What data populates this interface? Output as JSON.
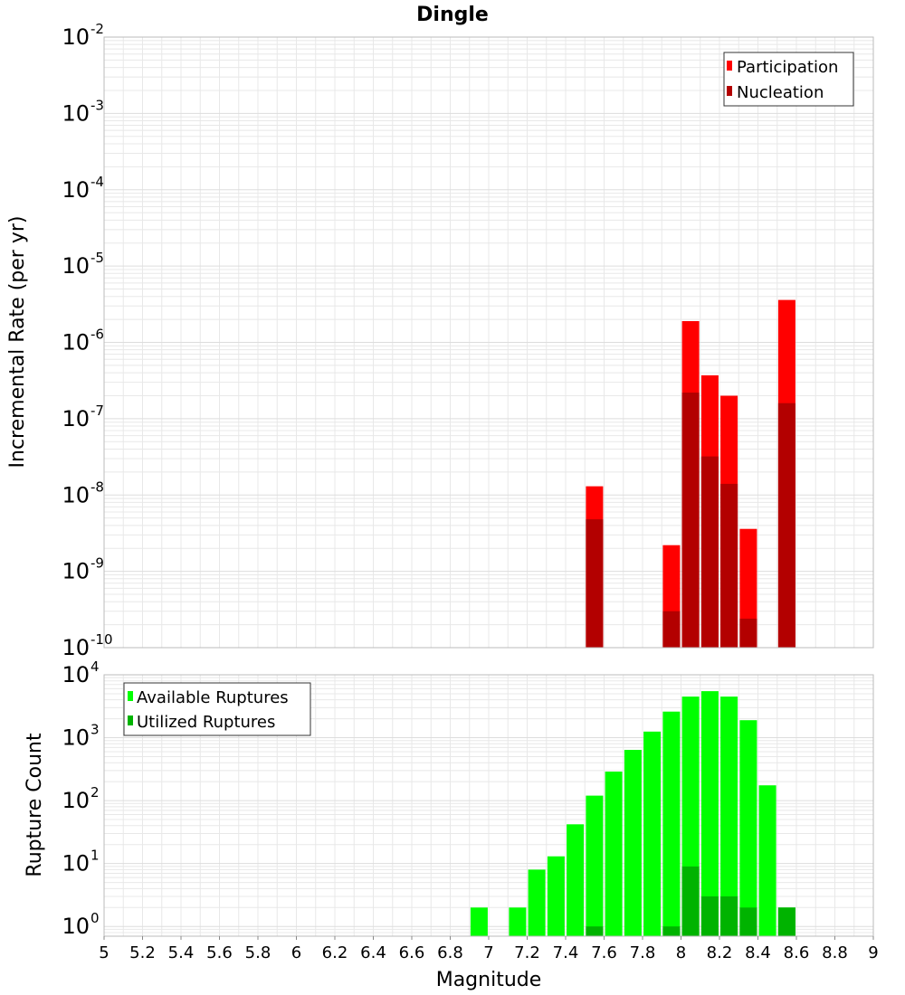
{
  "title": "Dingle",
  "colors": {
    "participation": "#ff0000",
    "nucleation": "#b30000",
    "available": "#00ff00",
    "utilized": "#00b300",
    "grid": "#e8e8e8",
    "frame": "#bbbbbb"
  },
  "chart_data": [
    {
      "type": "bar",
      "ylabel": "Incremental Rate (per yr)",
      "yscale": "log",
      "ylim": [
        1e-10,
        0.01
      ],
      "ytick_labels": [
        {
          "base": "10",
          "exp": "-2"
        },
        {
          "base": "10",
          "exp": "-3"
        },
        {
          "base": "10",
          "exp": "-4"
        },
        {
          "base": "10",
          "exp": "-5"
        },
        {
          "base": "10",
          "exp": "-6"
        },
        {
          "base": "10",
          "exp": "-7"
        },
        {
          "base": "10",
          "exp": "-8"
        },
        {
          "base": "10",
          "exp": "-9"
        },
        {
          "base": "10",
          "exp": "-10"
        }
      ],
      "xlim": [
        5,
        9
      ],
      "legend": [
        "Participation",
        "Nucleation"
      ],
      "legend_position": "top-right",
      "grid": true,
      "series": [
        {
          "name": "Participation",
          "x": [
            7.55,
            7.95,
            8.05,
            8.15,
            8.25,
            8.35,
            8.55
          ],
          "values": [
            1.3e-08,
            2.2e-09,
            1.9e-06,
            3.7e-07,
            2e-07,
            3.6e-09,
            3.6e-06
          ]
        },
        {
          "name": "Nucleation",
          "x": [
            7.55,
            7.95,
            8.05,
            8.15,
            8.25,
            8.35,
            8.55
          ],
          "values": [
            4.8e-09,
            3e-10,
            2.2e-07,
            3.2e-08,
            1.4e-08,
            2.4e-10,
            1.6e-07
          ]
        }
      ]
    },
    {
      "type": "bar",
      "xlabel": "Magnitude",
      "ylabel": "Rupture Count",
      "yscale": "log",
      "ylim": [
        0.7,
        10000
      ],
      "ytick_labels": [
        {
          "base": "10",
          "exp": "4"
        },
        {
          "base": "10",
          "exp": "3"
        },
        {
          "base": "10",
          "exp": "2"
        },
        {
          "base": "10",
          "exp": "1"
        },
        {
          "base": "10",
          "exp": "0"
        }
      ],
      "xlim": [
        5,
        9
      ],
      "xtick_labels": [
        "5",
        "5.2",
        "5.4",
        "5.6",
        "5.8",
        "6",
        "6.2",
        "6.4",
        "6.6",
        "6.8",
        "7",
        "7.2",
        "7.4",
        "7.6",
        "7.8",
        "8",
        "8.2",
        "8.4",
        "8.6",
        "8.8",
        "9"
      ],
      "legend": [
        "Available Ruptures",
        "Utilized Ruptures"
      ],
      "legend_position": "top-left",
      "grid": true,
      "series": [
        {
          "name": "Available Ruptures",
          "x": [
            6.95,
            7.15,
            7.25,
            7.35,
            7.45,
            7.55,
            7.65,
            7.75,
            7.85,
            7.95,
            8.05,
            8.15,
            8.25,
            8.35,
            8.45,
            8.55
          ],
          "values": [
            2,
            2,
            8,
            13,
            42,
            120,
            290,
            640,
            1250,
            2600,
            4500,
            5500,
            4500,
            1900,
            175,
            2
          ]
        },
        {
          "name": "Utilized Ruptures",
          "x": [
            7.55,
            7.95,
            8.05,
            8.15,
            8.25,
            8.35,
            8.55
          ],
          "values": [
            1,
            1,
            9,
            3,
            3,
            2,
            2
          ]
        }
      ]
    }
  ]
}
